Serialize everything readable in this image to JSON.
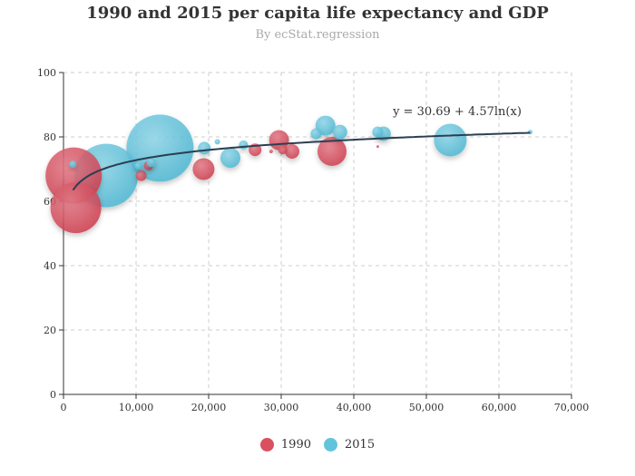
{
  "title": "1990 and 2015 per capita life expectancy and GDP",
  "subtitle": "By ecStat.regression",
  "chart_data": {
    "type": "scatter",
    "title": "1990 and 2015 per capita life expectancy and GDP",
    "subtitle": "By ecStat.regression",
    "xlim": [
      0,
      70000
    ],
    "ylim": [
      0,
      100
    ],
    "x_ticks": [
      "0",
      "10,000",
      "20,000",
      "30,000",
      "40,000",
      "50,000",
      "60,000",
      "70,000"
    ],
    "y_ticks": [
      "0",
      "20",
      "40",
      "60",
      "80",
      "100"
    ],
    "grid": true,
    "legend_position": "bottom-center",
    "series": [
      {
        "name": "1990",
        "color": "#d9505f",
        "points": [
          {
            "x": 1400,
            "y": 68,
            "r": 31
          },
          {
            "x": 1700,
            "y": 58,
            "r": 28
          },
          {
            "x": 10700,
            "y": 68,
            "r": 6
          },
          {
            "x": 11700,
            "y": 71,
            "r": 5
          },
          {
            "x": 19300,
            "y": 70,
            "r": 12
          },
          {
            "x": 26400,
            "y": 76,
            "r": 7
          },
          {
            "x": 28600,
            "y": 75.5,
            "r": 2
          },
          {
            "x": 29700,
            "y": 79,
            "r": 11
          },
          {
            "x": 30200,
            "y": 76,
            "r": 5
          },
          {
            "x": 31500,
            "y": 75.5,
            "r": 8
          },
          {
            "x": 37000,
            "y": 75.5,
            "r": 16
          },
          {
            "x": 43300,
            "y": 77,
            "r": 1.5
          }
        ]
      },
      {
        "name": "2015",
        "color": "#62c4dc",
        "points": [
          {
            "x": 1300,
            "y": 71.5,
            "r": 4
          },
          {
            "x": 5900,
            "y": 68,
            "r": 35
          },
          {
            "x": 10300,
            "y": 71,
            "r": 4
          },
          {
            "x": 12100,
            "y": 72,
            "r": 5
          },
          {
            "x": 13300,
            "y": 76.5,
            "r": 37
          },
          {
            "x": 19400,
            "y": 76.5,
            "r": 7
          },
          {
            "x": 21200,
            "y": 78.5,
            "r": 3
          },
          {
            "x": 23000,
            "y": 73.5,
            "r": 11
          },
          {
            "x": 24800,
            "y": 77.5,
            "r": 5
          },
          {
            "x": 34800,
            "y": 81,
            "r": 6
          },
          {
            "x": 36100,
            "y": 83.5,
            "r": 11
          },
          {
            "x": 38100,
            "y": 81.5,
            "r": 8
          },
          {
            "x": 43300,
            "y": 81.5,
            "r": 6
          },
          {
            "x": 44100,
            "y": 81,
            "r": 8
          },
          {
            "x": 53300,
            "y": 79,
            "r": 18
          },
          {
            "x": 64300,
            "y": 81.5,
            "r": 2.5
          }
        ]
      }
    ],
    "regression": {
      "type": "logarithmic",
      "a": 30.69,
      "b": 4.57,
      "equation": "y = 30.69 + 4.57ln(x)",
      "color": "#2c3e50"
    }
  },
  "legend": [
    {
      "name": "1990",
      "color": "#d9505f"
    },
    {
      "name": "2015",
      "color": "#62c4dc"
    }
  ]
}
